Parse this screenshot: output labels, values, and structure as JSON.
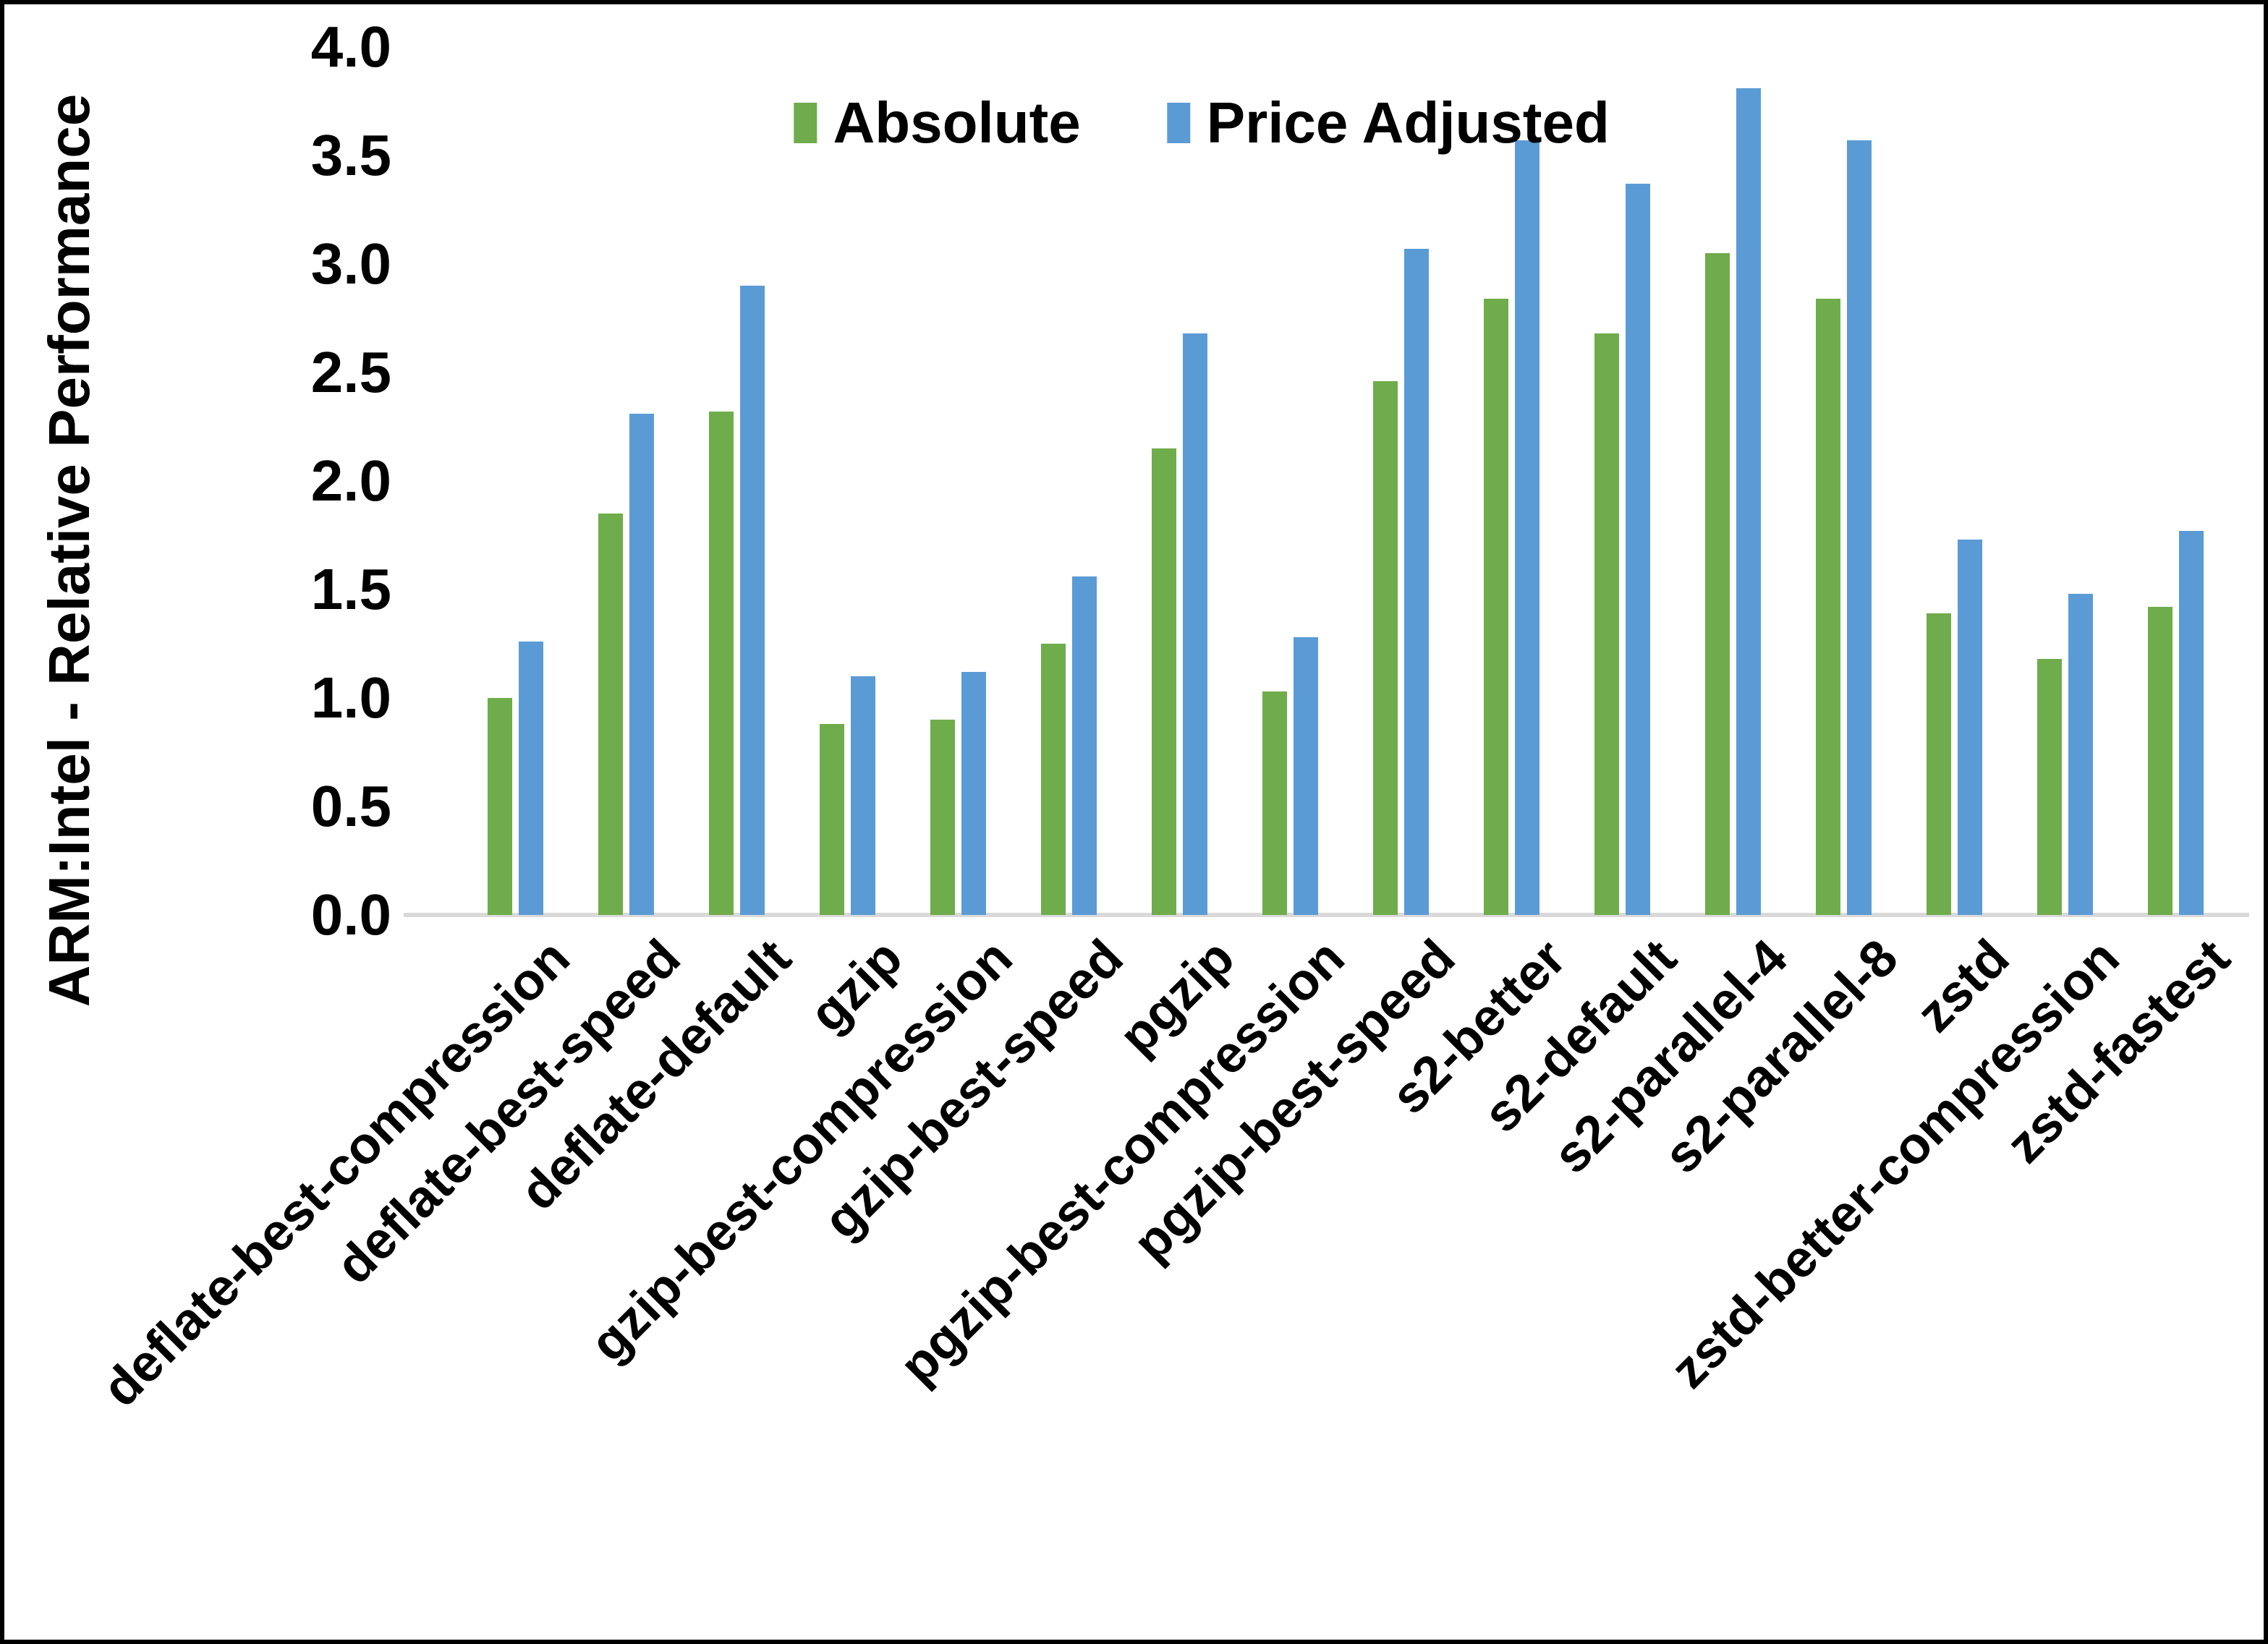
{
  "chart_data": {
    "type": "bar",
    "title": "",
    "ylabel": "ARM:Intel - Relative Performance",
    "xlabel": "",
    "ylim": [
      0.0,
      4.0
    ],
    "ytick_labels": [
      "0.0",
      "0.5",
      "1.0",
      "1.5",
      "2.0",
      "2.5",
      "3.0",
      "3.5",
      "4.0"
    ],
    "grid": false,
    "legend_position": "top-center-inside",
    "categories": [
      "deflate-best-compression",
      "deflate-best-speed",
      "deflate-default",
      "gzip",
      "gzip-best-compression",
      "gzip-best-speed",
      "pgzip",
      "pgzip-best-compression",
      "pgzip-best-speed",
      "s2-better",
      "s2-default",
      "s2-parallel-4",
      "s2-parallel-8",
      "zstd",
      "zstd-better-compression",
      "zstd-fastest"
    ],
    "series": [
      {
        "name": "Absolute",
        "color": "#6FAC4B",
        "values": [
          1.0,
          1.85,
          2.32,
          0.88,
          0.9,
          1.25,
          2.15,
          1.03,
          2.46,
          2.84,
          2.68,
          3.05,
          2.84,
          1.39,
          1.18,
          1.42
        ]
      },
      {
        "name": "Price Adjusted",
        "color": "#5B9BD5",
        "values": [
          1.26,
          2.31,
          2.9,
          1.1,
          1.12,
          1.56,
          2.68,
          1.28,
          3.07,
          3.57,
          3.37,
          3.81,
          3.57,
          1.73,
          1.48,
          1.77
        ]
      }
    ]
  },
  "colors": {
    "axis_line": "#D9D9D9",
    "frame_border": "#000000",
    "background": "#FFFFFF",
    "text": "#000000"
  }
}
